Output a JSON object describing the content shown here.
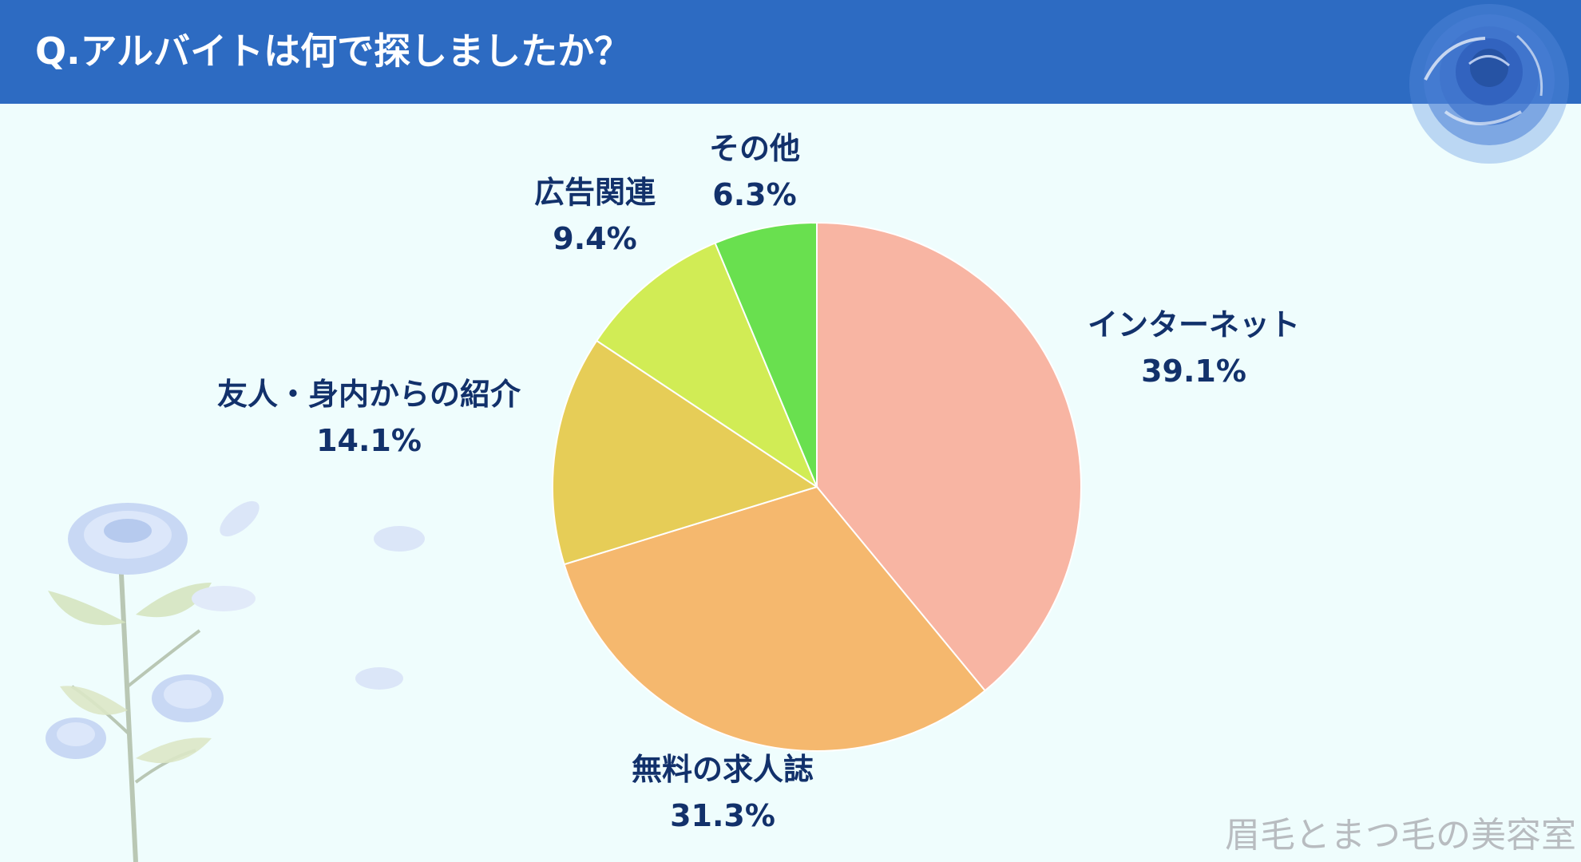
{
  "title": "Q.アルバイトは何で探しましたか？",
  "watermark": "眉毛とまつ毛の美容室",
  "chart_data": {
    "type": "pie",
    "title": "Q.アルバイトは何で探しましたか？",
    "slices": [
      {
        "label": "インターネット",
        "value": 39.1,
        "display": "39.1%",
        "color": "#f8b5a3"
      },
      {
        "label": "無料の求人誌",
        "value": 31.3,
        "display": "31.3%",
        "color": "#f5b86e"
      },
      {
        "label": "友人・身内からの紹介",
        "value": 14.1,
        "display": "14.1%",
        "color": "#e6cd57"
      },
      {
        "label": "広告関連",
        "value": 9.4,
        "display": "9.4%",
        "color": "#d1ec55"
      },
      {
        "label": "その他",
        "value": 6.3,
        "display": "6.3%",
        "color": "#69e04f"
      }
    ],
    "start": "12 o'clock",
    "direction": "clockwise",
    "legend": "none"
  },
  "decor": {
    "header_color": "#2d6bc2",
    "background_color": "#effdfd",
    "label_color": "#12316b",
    "icons": [
      "blue-rose-icon",
      "flower-stem-icon"
    ]
  }
}
